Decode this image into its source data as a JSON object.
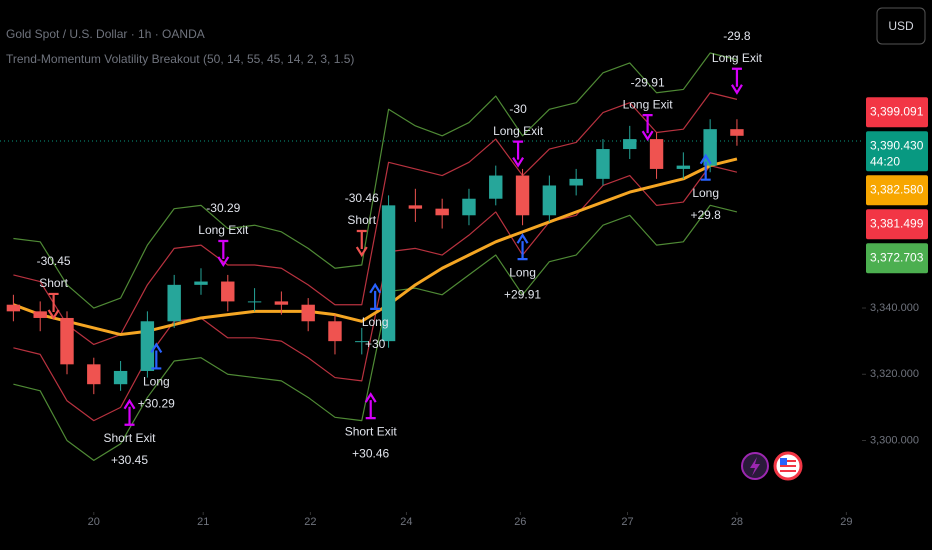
{
  "header": {
    "symbol": "Gold Spot / U.S. Dollar · 1h · OANDA",
    "indicator": "Trend-Momentum Volatility Breakout (50, 14, 55, 45, 14, 2, 3, 1.5)",
    "currency": "USD"
  },
  "chart_data": {
    "type": "candlestick",
    "xlim": [
      0,
      193
    ],
    "ylim": [
      3276,
      3433
    ],
    "xticks": [
      {
        "value": 21,
        "label": "20"
      },
      {
        "value": 45.5,
        "label": "21"
      },
      {
        "value": 69.5,
        "label": "22"
      },
      {
        "value": 91,
        "label": "24"
      },
      {
        "value": 116.5,
        "label": "26"
      },
      {
        "value": 140.5,
        "label": "27"
      },
      {
        "value": 165,
        "label": "28"
      },
      {
        "value": 189.5,
        "label": "29"
      }
    ],
    "yticks": [
      {
        "value": 3300,
        "label": "3,300.000"
      },
      {
        "value": 3320,
        "label": "3,320.000"
      },
      {
        "value": 3340,
        "label": "3,340.000"
      }
    ],
    "up_color": "#26a69a",
    "down_color": "#ef5350",
    "candles": {
      "x": [
        3,
        9,
        15,
        21,
        27,
        33,
        39,
        45,
        51,
        57,
        63,
        69,
        75,
        81,
        87,
        93,
        99,
        105,
        111,
        117,
        123,
        129,
        135,
        141,
        147,
        153,
        159,
        165
      ],
      "open": [
        3341,
        3339,
        3337,
        3323,
        3317,
        3321,
        3336,
        3347,
        3348,
        3342,
        3342,
        3341,
        3336,
        3330,
        3330,
        3371,
        3370,
        3368,
        3373,
        3380,
        3368,
        3377,
        3379,
        3388,
        3391,
        3382,
        3383,
        3394
      ],
      "high": [
        3344,
        3342,
        3339,
        3325,
        3324,
        3339,
        3350,
        3352,
        3350,
        3346,
        3345,
        3343,
        3338,
        3334,
        3374,
        3376,
        3373,
        3376,
        3383,
        3382,
        3380,
        3382,
        3391,
        3395,
        3393,
        3387,
        3397,
        3397
      ],
      "low": [
        3336,
        3333,
        3320,
        3314,
        3315,
        3319,
        3334,
        3344,
        3339,
        3339,
        3338,
        3333,
        3326,
        3326,
        3328,
        3366,
        3364,
        3365,
        3371,
        3365,
        3366,
        3374,
        3377,
        3385,
        3379,
        3379,
        3381,
        3389
      ],
      "close": [
        3339,
        3337,
        3323,
        3317,
        3321,
        3336,
        3347,
        3348,
        3342,
        3342,
        3341,
        3336,
        3330,
        3330,
        3371,
        3370,
        3368,
        3373,
        3380,
        3368,
        3377,
        3379,
        3388,
        3391,
        3382,
        3383,
        3394,
        3392
      ]
    },
    "lines": [
      {
        "color": "#4f8a35",
        "width": 1.2,
        "values": [
          3361,
          3360,
          3347,
          3340,
          3343,
          3359,
          3370,
          3371,
          3364,
          3365,
          3363,
          3358,
          3352,
          3353,
          3400,
          3395,
          3392,
          3396,
          3404,
          3392,
          3400,
          3402,
          3411,
          3414,
          3405,
          3406,
          3417,
          3415
        ]
      },
      {
        "color": "#b8323f",
        "width": 1.2,
        "values": [
          3350,
          3348,
          3335,
          3329,
          3332,
          3347,
          3358,
          3359,
          3353,
          3353,
          3352,
          3347,
          3341,
          3341,
          3384,
          3382,
          3380,
          3384,
          3391,
          3380,
          3388,
          3390,
          3399,
          3402,
          3393,
          3394,
          3405,
          3403
        ]
      },
      {
        "color": "#b8323f",
        "width": 1.2,
        "values": [
          3328,
          3326,
          3312,
          3306,
          3310,
          3325,
          3336,
          3337,
          3331,
          3331,
          3330,
          3325,
          3319,
          3318,
          3357,
          3358,
          3356,
          3362,
          3369,
          3356,
          3366,
          3368,
          3377,
          3380,
          3371,
          3372,
          3383,
          3381
        ]
      },
      {
        "color": "#4f8a35",
        "width": 1.2,
        "values": [
          3317,
          3315,
          3300,
          3294,
          3299,
          3313,
          3324,
          3325,
          3320,
          3319,
          3318,
          3313,
          3307,
          3306,
          3345,
          3346,
          3344,
          3350,
          3356,
          3344,
          3354,
          3356,
          3365,
          3368,
          3359,
          3360,
          3371,
          3369
        ]
      },
      {
        "color": "#f5a623",
        "width": 3,
        "values": [
          3341,
          3338,
          3336,
          3334,
          3332,
          3333,
          3335,
          3337,
          3338,
          3339,
          3339,
          3339,
          3338,
          3336,
          3341,
          3347,
          3352,
          3356,
          3360,
          3363,
          3366,
          3369,
          3372,
          3375,
          3377,
          3379,
          3383,
          3385
        ]
      }
    ],
    "signals": [
      {
        "x": 12,
        "price": 3337,
        "dir": "down",
        "color": "#ef5350",
        "labels": [
          "-30.45",
          "Short"
        ]
      },
      {
        "x": 29,
        "price": 3312,
        "dir": "up",
        "color": "#d500f9",
        "labels": [
          "Short Exit",
          "+30.45"
        ]
      },
      {
        "x": 35,
        "price": 3329,
        "dir": "up",
        "color": "#2962ff",
        "labels": [
          "Long",
          "+30.29"
        ]
      },
      {
        "x": 50,
        "price": 3353,
        "dir": "down",
        "color": "#d500f9",
        "labels": [
          "-30.29",
          "Long Exit"
        ]
      },
      {
        "x": 81,
        "price": 3356,
        "dir": "down",
        "color": "#ef5350",
        "labels": [
          "-30.46",
          "Short"
        ]
      },
      {
        "x": 83,
        "price": 3314,
        "dir": "up",
        "color": "#d500f9",
        "labels": [
          "Short Exit",
          "+30.46"
        ]
      },
      {
        "x": 84,
        "price": 3347,
        "dir": "up",
        "color": "#2962ff",
        "labels": [
          "Long",
          "+30"
        ]
      },
      {
        "x": 116,
        "price": 3383,
        "dir": "down",
        "color": "#d500f9",
        "labels": [
          "-30",
          "Long Exit"
        ]
      },
      {
        "x": 117,
        "price": 3362,
        "dir": "up",
        "color": "#2962ff",
        "labels": [
          "Long",
          "+29.91"
        ]
      },
      {
        "x": 145,
        "price": 3391,
        "dir": "down",
        "color": "#d500f9",
        "labels": [
          "-29.91",
          "Long Exit"
        ]
      },
      {
        "x": 158,
        "price": 3386,
        "dir": "up",
        "color": "#2962ff",
        "labels": [
          "Long",
          "+29.8"
        ]
      },
      {
        "x": 165,
        "price": 3405,
        "dir": "down",
        "color": "#d500f9",
        "labels": [
          "-29.8",
          "Long Exit"
        ]
      }
    ],
    "price_line": true,
    "price_tags": [
      {
        "value": 3399.091,
        "label": "3,399.091",
        "color": "#f23645"
      },
      {
        "value": 3390.43,
        "label": "3,390.430",
        "color": "#089981",
        "countdown": "44:20"
      },
      {
        "value": 3382.58,
        "label": "3,382.580",
        "color": "#f7a600"
      },
      {
        "value": 3381.499,
        "label": "3,381.499",
        "color": "#f23645"
      },
      {
        "value": 3372.703,
        "label": "3,372.703",
        "color": "#4caf50"
      }
    ]
  }
}
